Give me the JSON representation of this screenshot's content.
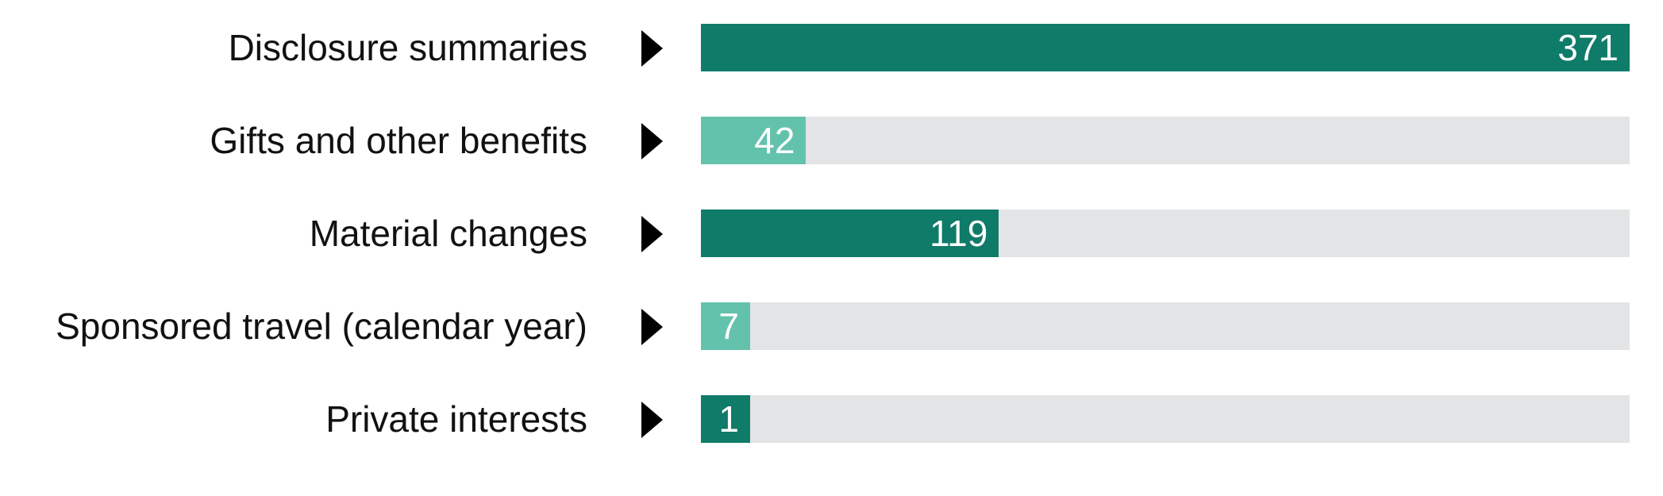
{
  "chart_data": {
    "type": "bar",
    "orientation": "horizontal",
    "title": "",
    "xlabel": "",
    "ylabel": "",
    "xlim": [
      0,
      371
    ],
    "grid": false,
    "legend": "none",
    "colors": {
      "dark": "#0f7b69",
      "light": "#63c2ac",
      "track": "#e3e4e5",
      "label_text": "#111111",
      "value_text": "#ffffff",
      "arrow": "#000000"
    },
    "bars": [
      {
        "category": "Disclosure summaries",
        "value": 371,
        "value_label": "371",
        "color": "dark"
      },
      {
        "category": "Gifts and other benefits",
        "value": 42,
        "value_label": "42",
        "color": "light"
      },
      {
        "category": "Material changes",
        "value": 119,
        "value_label": "119",
        "color": "dark"
      },
      {
        "category": "Sponsored travel (calendar year)",
        "value": 7,
        "value_label": "7",
        "color": "light"
      },
      {
        "category": "Private interests",
        "value": 1,
        "value_label": "1",
        "color": "dark"
      }
    ]
  }
}
